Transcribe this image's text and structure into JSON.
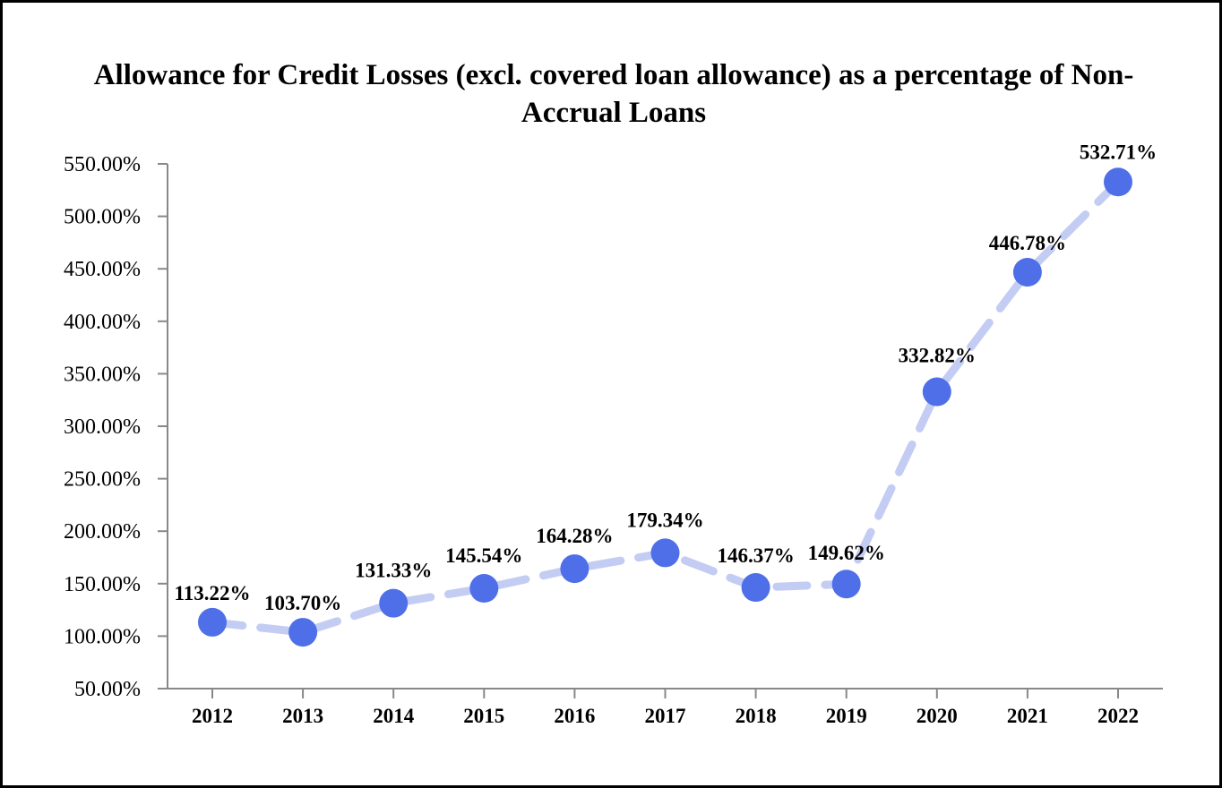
{
  "chart_data": {
    "type": "line",
    "title": "Allowance for Credit Losses (excl. covered loan allowance) as a percentage of Non-Accrual Loans",
    "xlabel": "",
    "ylabel": "",
    "categories": [
      "2012",
      "2013",
      "2014",
      "2015",
      "2016",
      "2017",
      "2018",
      "2019",
      "2020",
      "2021",
      "2022"
    ],
    "series": [
      {
        "values": [
          113.22,
          103.7,
          131.33,
          145.54,
          164.28,
          179.34,
          146.37,
          149.62,
          332.82,
          446.78,
          532.71
        ],
        "data_labels": [
          "113.22%",
          "103.70%",
          "131.33%",
          "145.54%",
          "164.28%",
          "179.34%",
          "146.37%",
          "149.62%",
          "332.82%",
          "446.78%",
          "532.71%"
        ]
      }
    ],
    "ylim": [
      50,
      550
    ],
    "yticks": [
      50,
      100,
      150,
      200,
      250,
      300,
      350,
      400,
      450,
      500,
      550
    ],
    "ytick_labels": [
      "50.00%",
      "100.00%",
      "150.00%",
      "200.00%",
      "250.00%",
      "300.00%",
      "350.00%",
      "400.00%",
      "450.00%",
      "500.00%",
      "550.00%"
    ],
    "grid": false,
    "legend": "none",
    "colors": {
      "marker": "#4F6FE8",
      "line": "#C3CCF3",
      "axis": "#888888"
    }
  }
}
